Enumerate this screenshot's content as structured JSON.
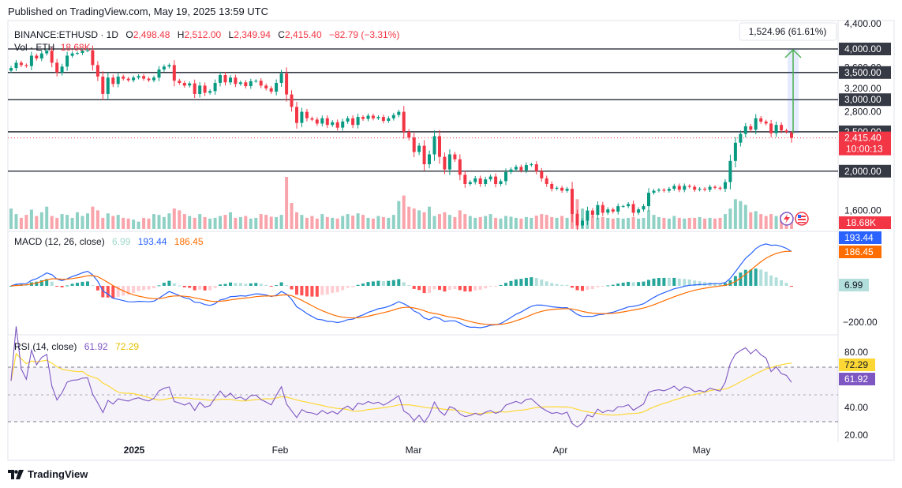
{
  "published": "Published on TradingView.com, May 19, 2025 13:59 UTC",
  "brand": "TradingView",
  "colors": {
    "up": "#089981",
    "down": "#f23645",
    "macd": "#2962ff",
    "signal": "#ff6d00",
    "rsi": "#7e57c2",
    "rsi_ma": "#fdd835",
    "measure": "#4caf50"
  },
  "header": {
    "symbol": "BINANCE:ETHUSD · 1D",
    "o_label": "O",
    "o": "2,498.48",
    "h_label": "H",
    "h": "2,512.00",
    "l_label": "L",
    "l": "2,349.94",
    "c_label": "C",
    "c": "2,415.40",
    "change": "−82.79 (−3.31%)",
    "vol_label": "Vol · ETH",
    "vol": "18.68K"
  },
  "price_axis": {
    "ticks": [
      "4,400.00",
      "3,600.00",
      "3,200.00",
      "2,800.00",
      "1,600.00"
    ],
    "levels": [
      "4,000.00",
      "3,500.00",
      "3,000.00",
      "2,500.00",
      "2,000.00"
    ],
    "last_price": "2,415.40",
    "countdown": "10:00:13",
    "volume": "18.68K"
  },
  "measure": {
    "label": "1,524.96 (61.61%)",
    "from": 2475,
    "to": 4000
  },
  "macd": {
    "title": "MACD (12, 26, close)",
    "hist": "6.99",
    "macd": "193.44",
    "signal": "186.45",
    "tick": "−200.00"
  },
  "rsi": {
    "title": "RSI (14, close)",
    "rsi": "61.92",
    "ma": "72.29",
    "ticks": [
      "80.00",
      "40.00",
      "20.00"
    ]
  },
  "time_axis": [
    "2025",
    "Feb",
    "Mar",
    "Apr",
    "May"
  ],
  "chart_data": {
    "type": "candlestick",
    "symbol": "BINANCE:ETHUSD",
    "interval": "1D",
    "price_scale": "log",
    "ylim": [
      1400,
      4400
    ],
    "horizontal_levels": [
      4000,
      3500,
      3000,
      2500,
      2000
    ],
    "dates_start": "2024-11-29",
    "close": [
      3590,
      3700,
      3650,
      3630,
      3850,
      3790,
      3900,
      3960,
      3700,
      3500,
      3620,
      3850,
      3900,
      3910,
      3960,
      3970,
      3650,
      3420,
      3100,
      3400,
      3280,
      3420,
      3380,
      3350,
      3400,
      3430,
      3380,
      3350,
      3400,
      3560,
      3620,
      3650,
      3340,
      3300,
      3250,
      3290,
      3100,
      3250,
      3120,
      3150,
      3300,
      3450,
      3310,
      3400,
      3280,
      3310,
      3240,
      3330,
      3340,
      3250,
      3200,
      3140,
      3300,
      3480,
      3090,
      2880,
      2630,
      2800,
      2700,
      2680,
      2620,
      2700,
      2600,
      2640,
      2560,
      2650,
      2700,
      2600,
      2720,
      2690,
      2740,
      2700,
      2720,
      2660,
      2700,
      2750,
      2800,
      2500,
      2420,
      2230,
      2310,
      2080,
      2200,
      2440,
      2170,
      2020,
      2200,
      2140,
      1960,
      1860,
      1880,
      1920,
      1860,
      1910,
      1940,
      1860,
      1890,
      1990,
      2020,
      2050,
      2010,
      2070,
      2080,
      2000,
      1920,
      1860,
      1810,
      1820,
      1790,
      1810,
      1570,
      1470,
      1510,
      1600,
      1560,
      1650,
      1580,
      1610,
      1590,
      1640,
      1640,
      1660,
      1580,
      1610,
      1640,
      1770,
      1790,
      1800,
      1790,
      1810,
      1840,
      1800,
      1840,
      1830,
      1800,
      1810,
      1800,
      1830,
      1820,
      1810,
      1880,
      2120,
      2350,
      2470,
      2580,
      2530,
      2700,
      2650,
      2620,
      2480,
      2600,
      2520,
      2500,
      2415
    ],
    "volume_K": [
      55,
      40,
      30,
      38,
      52,
      35,
      45,
      60,
      35,
      30,
      40,
      38,
      30,
      45,
      35,
      42,
      60,
      50,
      30,
      42,
      35,
      38,
      30,
      28,
      25,
      20,
      30,
      28,
      40,
      38,
      32,
      42,
      55,
      50,
      40,
      35,
      30,
      40,
      32,
      28,
      30,
      35,
      38,
      45,
      30,
      32,
      35,
      28,
      30,
      40,
      38,
      33,
      32,
      38,
      140,
      70,
      45,
      38,
      30,
      35,
      28,
      40,
      32,
      30,
      28,
      35,
      40,
      36,
      42,
      38,
      30,
      28,
      35,
      32,
      30,
      38,
      75,
      90,
      60,
      55,
      50,
      45,
      60,
      35,
      40,
      45,
      38,
      32,
      50,
      40,
      35,
      30,
      32,
      35,
      40,
      30,
      28,
      35,
      33,
      30,
      28,
      32,
      30,
      36,
      40,
      38,
      32,
      30,
      35,
      30,
      65,
      80,
      55,
      40,
      35,
      30,
      32,
      30,
      28,
      30,
      28,
      30,
      32,
      28,
      30,
      50,
      38,
      32,
      30,
      28,
      35,
      30,
      28,
      30,
      30,
      32,
      28,
      30,
      28,
      30,
      40,
      55,
      80,
      75,
      65,
      45,
      48,
      40,
      35,
      40,
      35,
      38,
      30,
      18.68
    ],
    "macd": {
      "latest_hist": 6.99,
      "latest_macd": 193.44,
      "latest_signal": 186.45
    },
    "rsi": {
      "latest": 61.92,
      "latest_ma": 72.29,
      "bands": [
        70,
        50,
        30
      ]
    }
  }
}
